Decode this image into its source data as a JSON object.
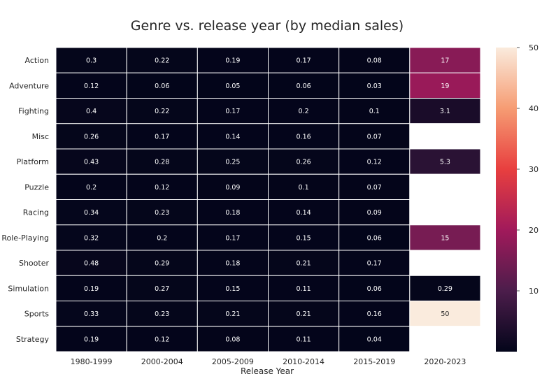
{
  "chart_data": {
    "type": "heatmap",
    "title": "Genre vs. release year (by median sales)",
    "xlabel": "Release Year",
    "ylabel": "",
    "x_categories": [
      "1980-1999",
      "2000-2004",
      "2005-2009",
      "2010-2014",
      "2015-2019",
      "2020-2023"
    ],
    "y_categories": [
      "Action",
      "Adventure",
      "Fighting",
      "Misc",
      "Platform",
      "Puzzle",
      "Racing",
      "Role-Playing",
      "Shooter",
      "Simulation",
      "Sports",
      "Strategy"
    ],
    "values": [
      [
        0.3,
        0.22,
        0.19,
        0.17,
        0.08,
        17
      ],
      [
        0.12,
        0.06,
        0.05,
        0.06,
        0.03,
        19
      ],
      [
        0.4,
        0.22,
        0.17,
        0.2,
        0.1,
        3.1
      ],
      [
        0.26,
        0.17,
        0.14,
        0.16,
        0.07,
        null
      ],
      [
        0.43,
        0.28,
        0.25,
        0.26,
        0.12,
        5.3
      ],
      [
        0.2,
        0.12,
        0.09,
        0.1,
        0.07,
        null
      ],
      [
        0.34,
        0.23,
        0.18,
        0.14,
        0.09,
        null
      ],
      [
        0.32,
        0.2,
        0.17,
        0.15,
        0.06,
        15
      ],
      [
        0.48,
        0.29,
        0.18,
        0.21,
        0.17,
        null
      ],
      [
        0.19,
        0.27,
        0.15,
        0.11,
        0.06,
        0.29
      ],
      [
        0.33,
        0.23,
        0.21,
        0.21,
        0.16,
        50
      ],
      [
        0.19,
        0.12,
        0.08,
        0.11,
        0.04,
        null
      ]
    ],
    "labels": [
      [
        "0.3",
        "0.22",
        "0.19",
        "0.17",
        "0.08",
        "17"
      ],
      [
        "0.12",
        "0.06",
        "0.05",
        "0.06",
        "0.03",
        "19"
      ],
      [
        "0.4",
        "0.22",
        "0.17",
        "0.2",
        "0.1",
        "3.1"
      ],
      [
        "0.26",
        "0.17",
        "0.14",
        "0.16",
        "0.07",
        ""
      ],
      [
        "0.43",
        "0.28",
        "0.25",
        "0.26",
        "0.12",
        "5.3"
      ],
      [
        "0.2",
        "0.12",
        "0.09",
        "0.1",
        "0.07",
        ""
      ],
      [
        "0.34",
        "0.23",
        "0.18",
        "0.14",
        "0.09",
        ""
      ],
      [
        "0.32",
        "0.2",
        "0.17",
        "0.15",
        "0.06",
        "15"
      ],
      [
        "0.48",
        "0.29",
        "0.18",
        "0.21",
        "0.17",
        ""
      ],
      [
        "0.19",
        "0.27",
        "0.15",
        "0.11",
        "0.06",
        "0.29"
      ],
      [
        "0.33",
        "0.23",
        "0.21",
        "0.21",
        "0.16",
        "50"
      ],
      [
        "0.19",
        "0.12",
        "0.08",
        "0.11",
        "0.04",
        ""
      ]
    ],
    "colorbar": {
      "min": 0,
      "max": 50,
      "ticks": [
        10,
        20,
        30,
        40,
        50
      ],
      "colormap": "rocket",
      "stops": [
        "#03051a",
        "#4c1d4b",
        "#a11a5b",
        "#e83f3f",
        "#f69c73",
        "#faebdd"
      ]
    },
    "missing_color": "#ffffff",
    "cell_border_color": "#ffffff"
  }
}
